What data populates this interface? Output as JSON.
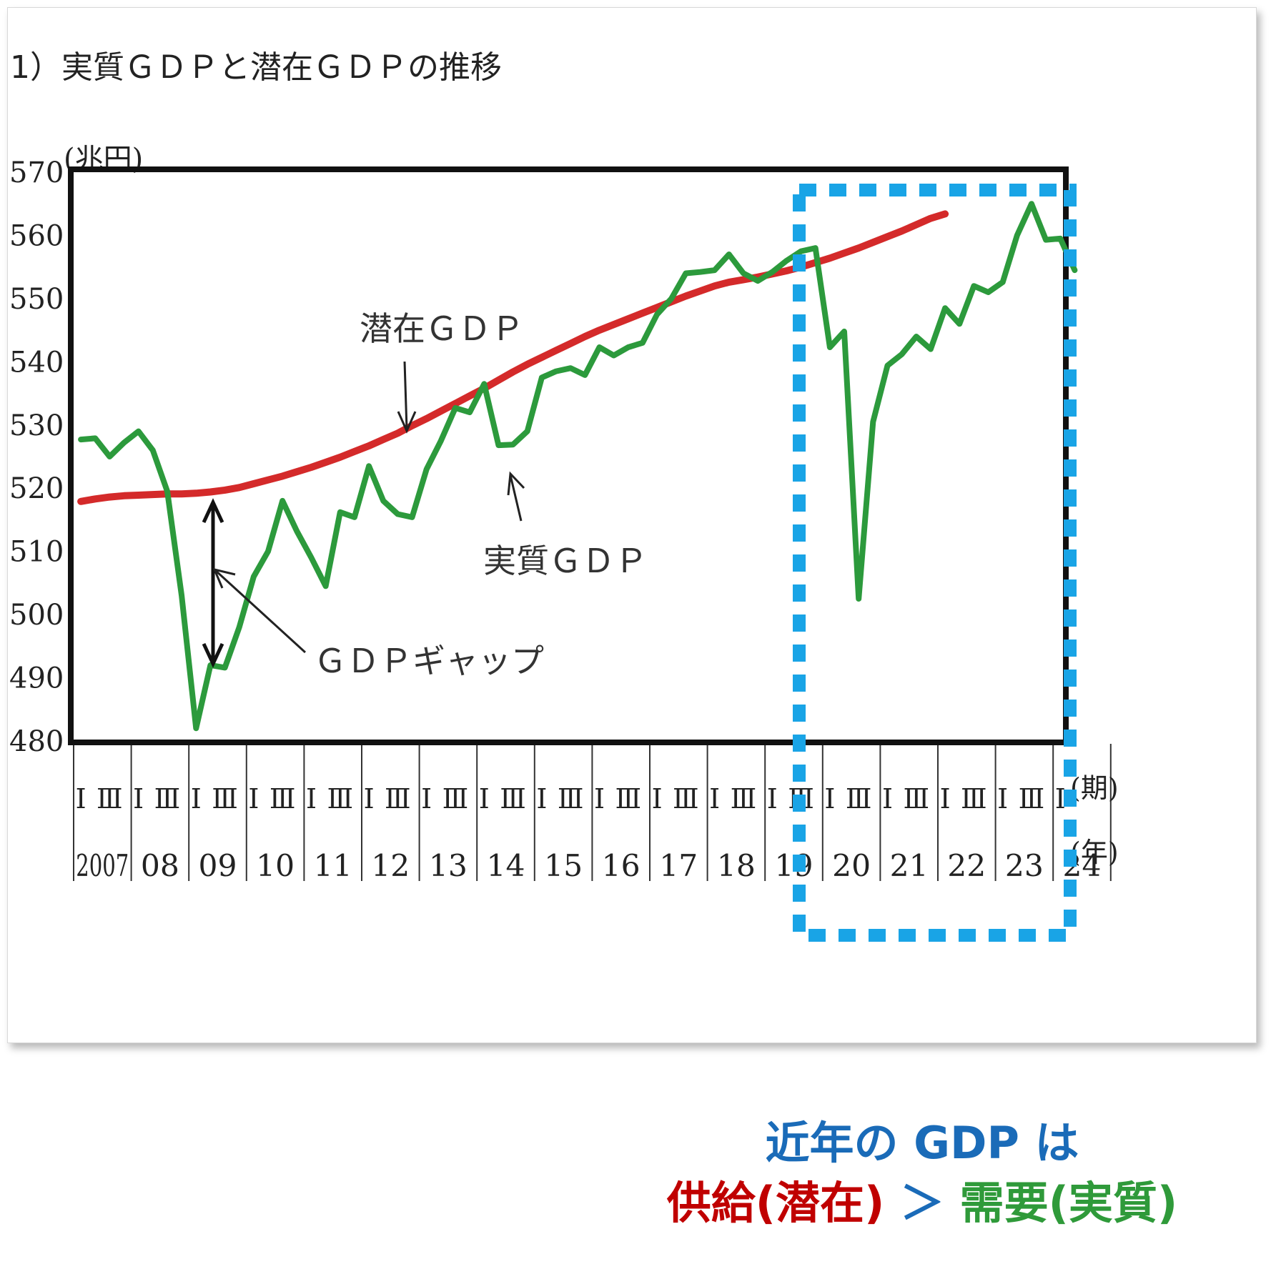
{
  "chart_data": {
    "type": "line",
    "title": "1）実質ＧＤＰと潜在ＧＤＰの推移",
    "y_unit": "(兆円)",
    "ylim": [
      480,
      570
    ],
    "y_ticks": [
      480,
      490,
      500,
      510,
      520,
      530,
      540,
      550,
      560,
      570
    ],
    "x_start": "2007 Q1",
    "quarters_per_year": 4,
    "period_labels": [
      "Ⅰ",
      "Ⅲ"
    ],
    "period_unit": "(期)",
    "year_labels": [
      "2007",
      "08",
      "09",
      "10",
      "11",
      "12",
      "13",
      "14",
      "15",
      "16",
      "17",
      "18",
      "19",
      "20",
      "21",
      "22",
      "23",
      "24"
    ],
    "year_unit": "(年)",
    "series": [
      {
        "name": "潜在ＧＤＰ",
        "color": "#d42a2a",
        "values": [
          517.9,
          518.3,
          518.6,
          518.8,
          518.9,
          519.0,
          519.1,
          519.1,
          519.2,
          519.4,
          519.7,
          520.1,
          520.7,
          521.3,
          521.9,
          522.6,
          523.3,
          524.1,
          524.9,
          525.8,
          526.7,
          527.7,
          528.7,
          529.9,
          531.0,
          532.2,
          533.4,
          534.6,
          535.8,
          537.1,
          538.4,
          539.6,
          540.7,
          541.8,
          542.9,
          544.0,
          545.0,
          545.9,
          546.8,
          547.7,
          548.6,
          549.5,
          550.4,
          551.2,
          552.0,
          552.6,
          553.0,
          553.4,
          553.9,
          554.4,
          555.0,
          555.7,
          556.4,
          557.2,
          558.0,
          558.9,
          559.8,
          560.7,
          561.7,
          562.7,
          563.4
        ]
      },
      {
        "name": "実質ＧＤＰ",
        "color": "#2c9a3c",
        "values": [
          527.7,
          527.9,
          525.0,
          527.2,
          529.0,
          526.0,
          519.5,
          503.0,
          482.0,
          492.0,
          491.6,
          498.0,
          506.0,
          510.0,
          518.0,
          513.2,
          509.0,
          504.5,
          516.2,
          515.4,
          523.5,
          518.0,
          515.9,
          515.4,
          523.0,
          527.5,
          532.7,
          532.0,
          536.5,
          526.8,
          526.9,
          529.0,
          537.5,
          538.5,
          539.0,
          537.9,
          542.3,
          541.0,
          542.3,
          543.0,
          547.5,
          550.0,
          554.0,
          554.2,
          554.5,
          557.0,
          554.0,
          552.8,
          554.2,
          556.0,
          557.5,
          558.0,
          542.3,
          544.8,
          502.5,
          530.5,
          539.4,
          541.2,
          544.0,
          542.0,
          548.5,
          546.0,
          552.0,
          551.0,
          552.6,
          560.0,
          565.0,
          559.3,
          559.5,
          554.5
        ]
      }
    ],
    "annotations": {
      "potential": "潜在ＧＤＰ",
      "real": "実質ＧＤＰ",
      "gap": "ＧＤＰギャップ"
    }
  },
  "caption": {
    "line1": "近年の GDP は",
    "supply": "供給(潜在)",
    "gt": " ＞ ",
    "demand": "需要(実質)"
  },
  "colors": {
    "highlight_box": "#19a4e6",
    "caption_blue": "#1a6bb8",
    "caption_red": "#c00000",
    "caption_green": "#2f9a3a"
  }
}
